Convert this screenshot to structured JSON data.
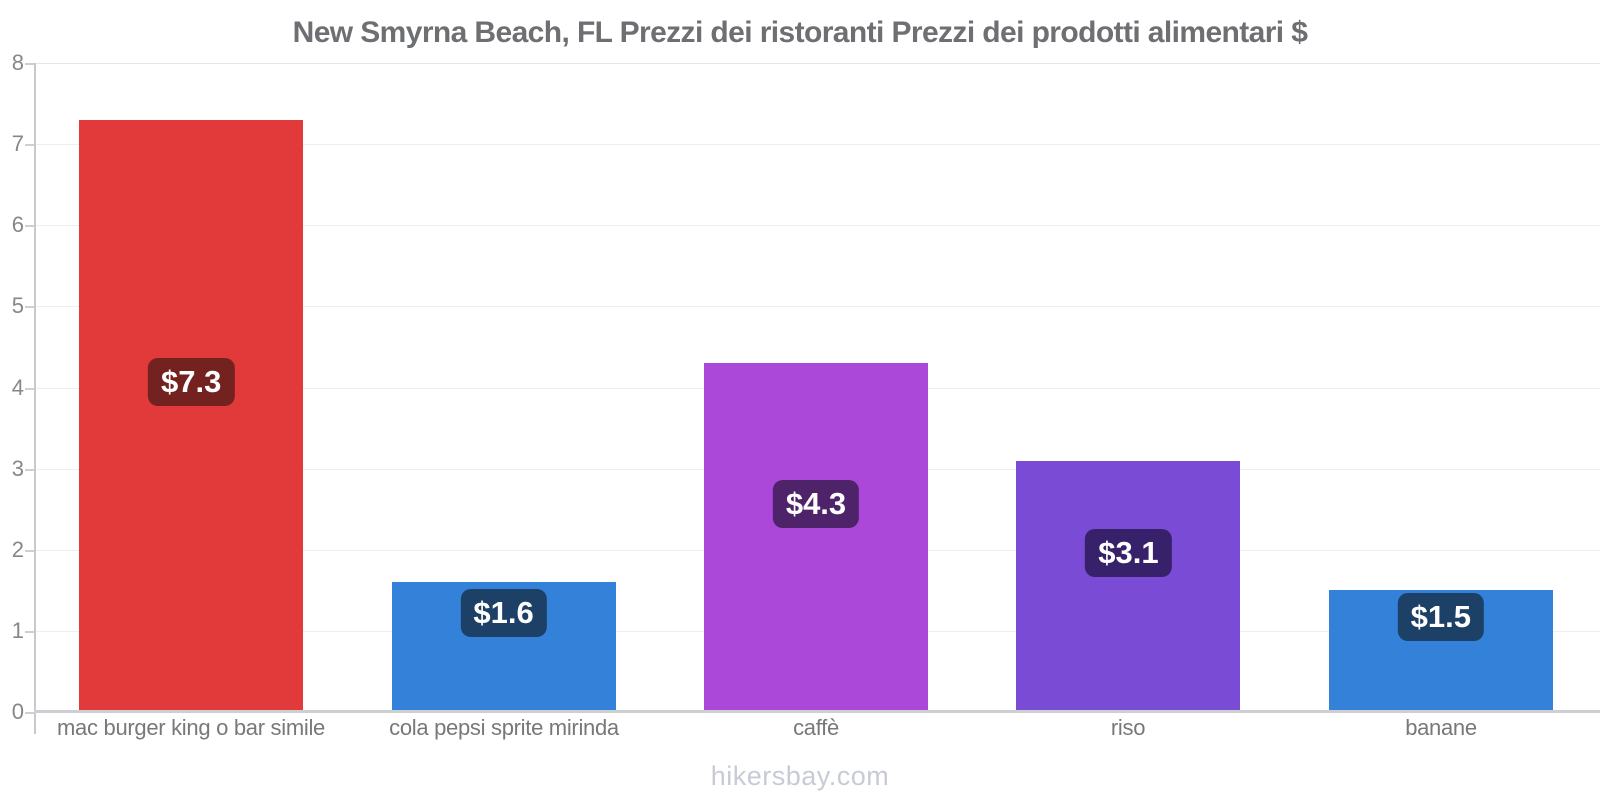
{
  "title": "New Smyrna Beach, FL Prezzi dei ristoranti Prezzi dei prodotti alimentari $",
  "footer": "hikersbay.com",
  "chart_data": {
    "type": "bar",
    "title": "New Smyrna Beach, FL Prezzi dei ristoranti Prezzi dei prodotti alimentari $",
    "categories": [
      "mac burger king o bar simile",
      "cola pepsi sprite mirinda",
      "caffè",
      "riso",
      "banane"
    ],
    "values": [
      7.3,
      1.6,
      4.3,
      3.1,
      1.5
    ],
    "value_labels": [
      "$7.3",
      "$1.6",
      "$4.3",
      "$3.1",
      "$1.5"
    ],
    "bar_colors": [
      "#e23a3a",
      "#3381d9",
      "#ab47d9",
      "#7a4bd4",
      "#3381d9"
    ],
    "badge_colors": [
      "#732220",
      "#1d4066",
      "#4f2369",
      "#37216b",
      "#1d4066"
    ],
    "xlabel": "",
    "ylabel": "",
    "ylim": [
      0,
      8
    ],
    "yticks": [
      0,
      1,
      2,
      3,
      4,
      5,
      6,
      7,
      8
    ],
    "grid": "horizontal-light",
    "legend_position": "none",
    "currency": "$"
  }
}
